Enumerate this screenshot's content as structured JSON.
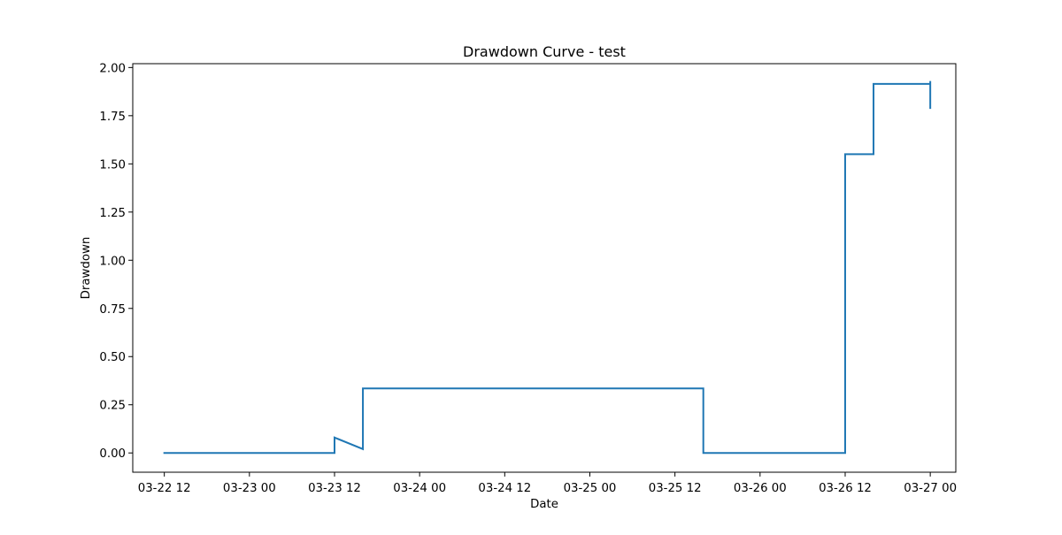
{
  "chart_data": {
    "type": "line",
    "title": "Drawdown Curve - test",
    "xlabel": "Date",
    "ylabel": "Drawdown",
    "xlim": [
      "2023-03-22T07:33",
      "2023-03-27T03:36"
    ],
    "ylim": [
      -0.1,
      2.02
    ],
    "x_ticks": [
      {
        "value": "2023-03-22T12:00",
        "label": "03-22 12"
      },
      {
        "value": "2023-03-23T00:00",
        "label": "03-23 00"
      },
      {
        "value": "2023-03-23T12:00",
        "label": "03-23 12"
      },
      {
        "value": "2023-03-24T00:00",
        "label": "03-24 00"
      },
      {
        "value": "2023-03-24T12:00",
        "label": "03-24 12"
      },
      {
        "value": "2023-03-25T00:00",
        "label": "03-25 00"
      },
      {
        "value": "2023-03-25T12:00",
        "label": "03-25 12"
      },
      {
        "value": "2023-03-26T00:00",
        "label": "03-26 00"
      },
      {
        "value": "2023-03-26T12:00",
        "label": "03-26 12"
      },
      {
        "value": "2023-03-27T00:00",
        "label": "03-27 00"
      }
    ],
    "y_ticks": [
      {
        "value": 0.0,
        "label": "0.00"
      },
      {
        "value": 0.25,
        "label": "0.25"
      },
      {
        "value": 0.5,
        "label": "0.50"
      },
      {
        "value": 0.75,
        "label": "0.75"
      },
      {
        "value": 1.0,
        "label": "1.00"
      },
      {
        "value": 1.25,
        "label": "1.25"
      },
      {
        "value": 1.5,
        "label": "1.50"
      },
      {
        "value": 1.75,
        "label": "1.75"
      },
      {
        "value": 2.0,
        "label": "2.00"
      }
    ],
    "grid": false,
    "series": [
      {
        "color": "#1f77b4",
        "points": [
          {
            "x": "2023-03-22T12:00",
            "y": 0.0
          },
          {
            "x": "2023-03-23T12:00",
            "y": 0.0
          },
          {
            "x": "2023-03-23T12:00",
            "y": 0.08
          },
          {
            "x": "2023-03-23T16:00",
            "y": 0.02
          },
          {
            "x": "2023-03-23T16:00",
            "y": 0.335
          },
          {
            "x": "2023-03-25T16:00",
            "y": 0.335
          },
          {
            "x": "2023-03-25T16:00",
            "y": 0.0
          },
          {
            "x": "2023-03-26T12:00",
            "y": 0.0
          },
          {
            "x": "2023-03-26T12:00",
            "y": 1.55
          },
          {
            "x": "2023-03-26T16:00",
            "y": 1.55
          },
          {
            "x": "2023-03-26T16:00",
            "y": 1.915
          },
          {
            "x": "2023-03-27T00:00",
            "y": 1.915
          },
          {
            "x": "2023-03-27T00:00",
            "y": 1.93
          },
          {
            "x": "2023-03-27T00:00",
            "y": 1.79
          }
        ]
      }
    ]
  }
}
